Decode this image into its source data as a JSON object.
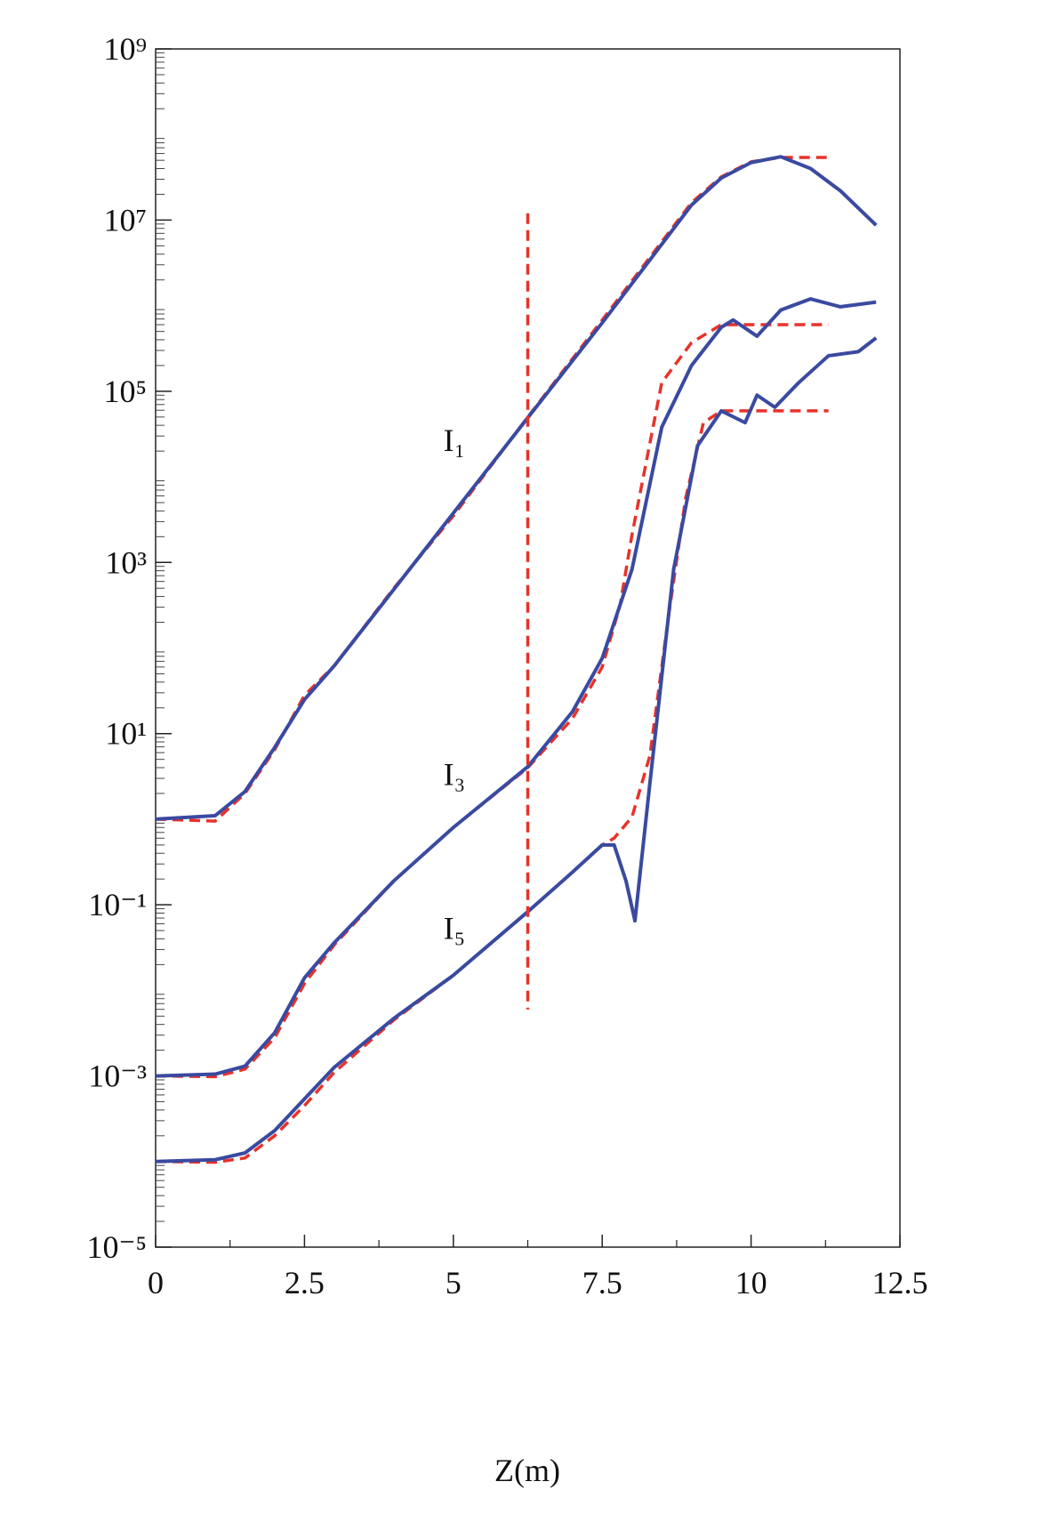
{
  "chart_data": {
    "type": "line",
    "x_label": "Z(m)",
    "log_y": true,
    "xlim": [
      0,
      12.5
    ],
    "ylim": [
      1e-05,
      1000000000
    ],
    "xticks": [
      0,
      2.5,
      5,
      7.5,
      10,
      12.5
    ],
    "yticks": [
      {
        "value": 1e-05,
        "label": "10⁻⁵"
      },
      {
        "value": 0.001,
        "label": "10⁻³"
      },
      {
        "value": 0.1,
        "label": "10⁻¹"
      },
      {
        "value": 10,
        "label": "10¹"
      },
      {
        "value": 1000,
        "label": "10³"
      },
      {
        "value": 100000,
        "label": "10⁵"
      },
      {
        "value": 10000000,
        "label": "10⁷"
      },
      {
        "value": 1000000000,
        "label": "10⁹"
      }
    ],
    "series": [
      {
        "color": "#e8322a",
        "dash": true,
        "x": [
          0,
          1,
          1.5,
          2,
          2.5,
          3,
          4,
          5,
          6.25,
          7.5,
          9,
          9.5,
          10,
          10.5,
          11.3
        ],
        "values": [
          1,
          0.95,
          2,
          6.5,
          28,
          62,
          500,
          3500,
          50000,
          680000,
          16000000,
          32000000,
          48000000,
          54000000,
          54000000
        ]
      },
      {
        "color": "#3a4aa0",
        "dash": false,
        "x": [
          0,
          1,
          1.5,
          2,
          2.5,
          3,
          4.5,
          6.25,
          7.5,
          9,
          9.5,
          10,
          10.5,
          11,
          11.5,
          12.1
        ],
        "values": [
          1,
          1.1,
          2.1,
          6.9,
          25,
          62,
          1350,
          49000,
          630000,
          15000000,
          31000000,
          47000000,
          55000000,
          40000000,
          22000000,
          8700000
        ]
      },
      {
        "color": "#e8322a",
        "dash": true,
        "x": [
          0,
          1,
          1.5,
          2,
          2.5,
          3,
          4,
          5,
          6.25,
          7,
          7.5,
          7.8,
          8,
          8.5,
          9,
          9.5,
          11.3
        ],
        "values": [
          0.001,
          0.00098,
          0.0012,
          0.0028,
          0.012,
          0.034,
          0.19,
          0.8,
          4,
          15,
          60,
          316,
          2100,
          126000,
          370000,
          600000,
          600000
        ]
      },
      {
        "color": "#3a4aa0",
        "dash": false,
        "x": [
          0,
          1,
          1.5,
          2,
          2.5,
          3,
          4,
          5,
          6.25,
          7,
          7.5,
          8,
          8.5,
          9,
          9.5,
          9.7,
          10.1,
          10.5,
          11,
          11.5,
          12.1
        ],
        "values": [
          0.001,
          0.00105,
          0.0013,
          0.0032,
          0.014,
          0.036,
          0.19,
          0.8,
          4.1,
          18,
          76,
          830,
          38000,
          200000,
          560000,
          680000,
          440000,
          890000,
          1200000,
          970000,
          1100000
        ]
      },
      {
        "color": "#e8322a",
        "dash": true,
        "x": [
          0,
          1,
          1.5,
          2,
          2.5,
          3,
          4,
          5,
          6.25,
          7,
          7.5,
          7.7,
          8,
          8.3,
          8.6,
          8.9,
          9.2,
          9.5,
          11.3
        ],
        "values": [
          0.0001,
          9.8e-05,
          0.00011,
          0.0002,
          0.00045,
          0.0011,
          0.0045,
          0.015,
          0.083,
          0.24,
          0.5,
          0.6,
          1.06,
          5.5,
          200,
          5600,
          43000,
          59000,
          59000
        ]
      },
      {
        "color": "#3a4aa0",
        "dash": false,
        "x": [
          0,
          1,
          1.5,
          2,
          2.5,
          3,
          4,
          5,
          6.25,
          7,
          7.5,
          7.7,
          7.9,
          8.05,
          8.3,
          8.7,
          9.1,
          9.5,
          9.9,
          10.1,
          10.4,
          10.8,
          11.3,
          11.8,
          12.1
        ],
        "values": [
          0.0001,
          0.000105,
          0.000126,
          0.00023,
          0.00054,
          0.00126,
          0.0047,
          0.015,
          0.083,
          0.24,
          0.5,
          0.5,
          0.19,
          0.065,
          2.6,
          830,
          23000,
          59000,
          43000,
          90000,
          65000,
          126000,
          260000,
          290000,
          420000
        ]
      },
      {
        "color": "#e8322a",
        "dash": true,
        "x": [
          6.25,
          6.25
        ],
        "values": [
          12000000,
          0.006
        ]
      }
    ],
    "annotations": [
      {
        "text": "I₁",
        "x": 5.2,
        "y": 20000
      },
      {
        "text": "I₃",
        "x": 5.2,
        "y": 2.5
      },
      {
        "text": "I₅",
        "x": 5.2,
        "y": 0.04
      }
    ]
  }
}
